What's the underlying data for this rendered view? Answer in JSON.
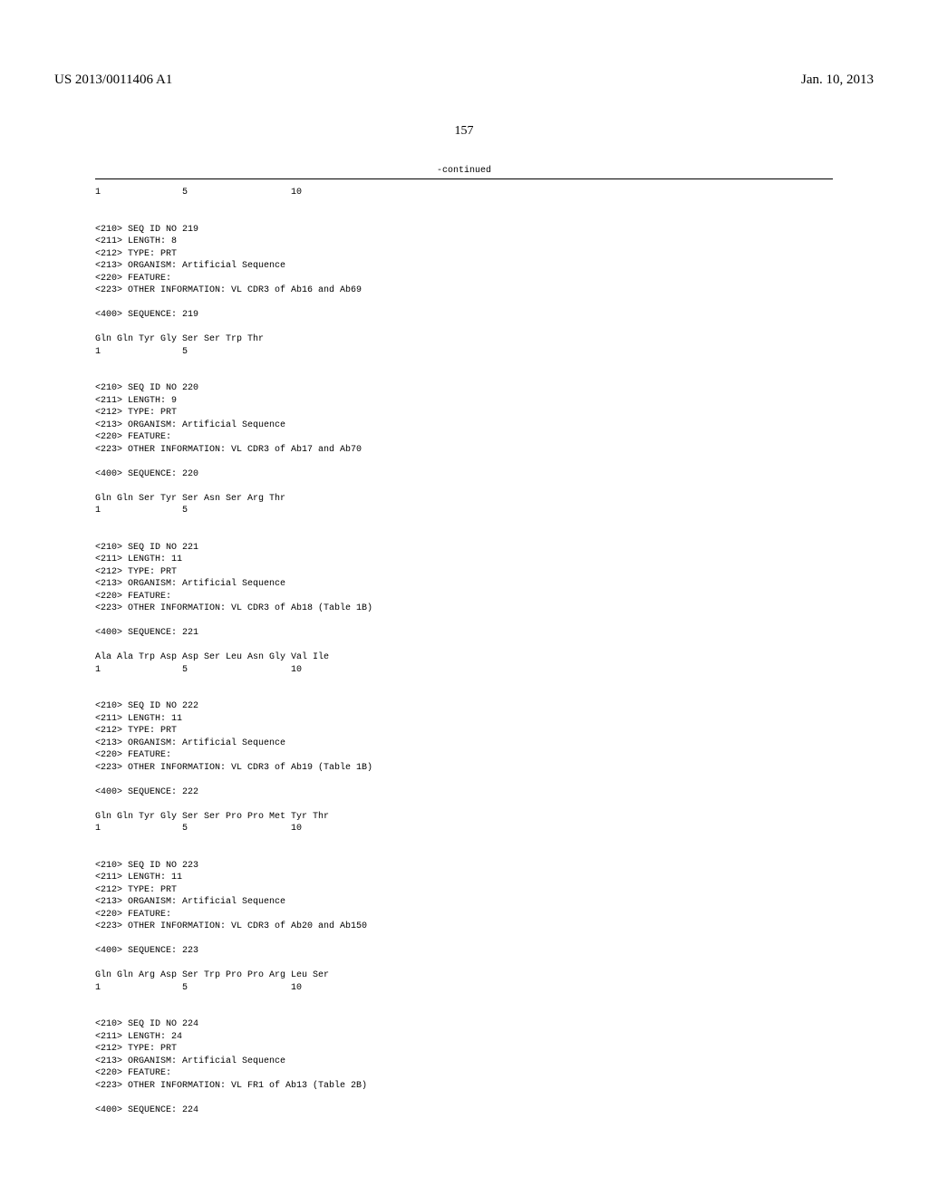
{
  "header": {
    "pub_number": "US 2013/0011406 A1",
    "pub_date": "Jan. 10, 2013"
  },
  "page_number": "157",
  "continued_label": "-continued",
  "sequences": [
    {
      "position_line": "1               5                   10"
    },
    {
      "seq_id": "<210> SEQ ID NO 219",
      "length": "<211> LENGTH: 8",
      "type": "<212> TYPE: PRT",
      "organism": "<213> ORGANISM: Artificial Sequence",
      "feature": "<220> FEATURE:",
      "other_info": "<223> OTHER INFORMATION: VL CDR3 of Ab16 and Ab69",
      "sequence_label": "<400> SEQUENCE: 219",
      "sequence": "Gln Gln Tyr Gly Ser Ser Trp Thr",
      "position_line": "1               5"
    },
    {
      "seq_id": "<210> SEQ ID NO 220",
      "length": "<211> LENGTH: 9",
      "type": "<212> TYPE: PRT",
      "organism": "<213> ORGANISM: Artificial Sequence",
      "feature": "<220> FEATURE:",
      "other_info": "<223> OTHER INFORMATION: VL CDR3 of Ab17 and Ab70",
      "sequence_label": "<400> SEQUENCE: 220",
      "sequence": "Gln Gln Ser Tyr Ser Asn Ser Arg Thr",
      "position_line": "1               5"
    },
    {
      "seq_id": "<210> SEQ ID NO 221",
      "length": "<211> LENGTH: 11",
      "type": "<212> TYPE: PRT",
      "organism": "<213> ORGANISM: Artificial Sequence",
      "feature": "<220> FEATURE:",
      "other_info": "<223> OTHER INFORMATION: VL CDR3 of Ab18 (Table 1B)",
      "sequence_label": "<400> SEQUENCE: 221",
      "sequence": "Ala Ala Trp Asp Asp Ser Leu Asn Gly Val Ile",
      "position_line": "1               5                   10"
    },
    {
      "seq_id": "<210> SEQ ID NO 222",
      "length": "<211> LENGTH: 11",
      "type": "<212> TYPE: PRT",
      "organism": "<213> ORGANISM: Artificial Sequence",
      "feature": "<220> FEATURE:",
      "other_info": "<223> OTHER INFORMATION: VL CDR3 of Ab19 (Table 1B)",
      "sequence_label": "<400> SEQUENCE: 222",
      "sequence": "Gln Gln Tyr Gly Ser Ser Pro Pro Met Tyr Thr",
      "position_line": "1               5                   10"
    },
    {
      "seq_id": "<210> SEQ ID NO 223",
      "length": "<211> LENGTH: 11",
      "type": "<212> TYPE: PRT",
      "organism": "<213> ORGANISM: Artificial Sequence",
      "feature": "<220> FEATURE:",
      "other_info": "<223> OTHER INFORMATION: VL CDR3 of Ab20 and Ab150",
      "sequence_label": "<400> SEQUENCE: 223",
      "sequence": "Gln Gln Arg Asp Ser Trp Pro Pro Arg Leu Ser",
      "position_line": "1               5                   10"
    },
    {
      "seq_id": "<210> SEQ ID NO 224",
      "length": "<211> LENGTH: 24",
      "type": "<212> TYPE: PRT",
      "organism": "<213> ORGANISM: Artificial Sequence",
      "feature": "<220> FEATURE:",
      "other_info": "<223> OTHER INFORMATION: VL FR1 of Ab13 (Table 2B)",
      "sequence_label": "<400> SEQUENCE: 224"
    }
  ]
}
